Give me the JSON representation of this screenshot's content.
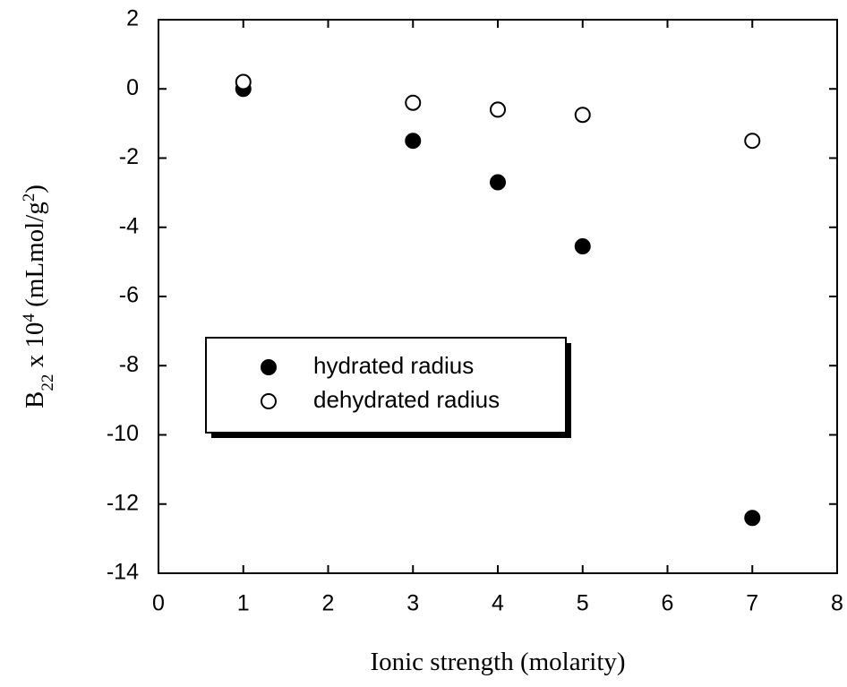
{
  "chart_data": {
    "type": "scatter",
    "xlabel": "Ionic strength (molarity)",
    "ylabel": [
      "B",
      "22",
      " x 10",
      "4",
      " (mLmol/g",
      "2",
      ")"
    ],
    "xlim": [
      0,
      8
    ],
    "xticks": [
      0,
      1,
      2,
      3,
      4,
      5,
      6,
      7,
      8
    ],
    "ylim": [
      -14,
      2
    ],
    "yticks": [
      -14,
      -12,
      -10,
      -8,
      -6,
      -4,
      -2,
      0,
      2
    ],
    "legend": "center-left",
    "series": [
      {
        "name": "hydrated radius",
        "color": "#000000",
        "filled": true,
        "x": [
          1,
          3,
          4,
          5,
          7
        ],
        "values": [
          0,
          -1.5,
          -2.7,
          -4.55,
          -12.4
        ]
      },
      {
        "name": "dehydrated radius",
        "color": "#000000",
        "filled": false,
        "x": [
          1,
          3,
          4,
          5,
          7
        ],
        "values": [
          0.2,
          -0.4,
          -0.6,
          -0.75,
          -1.5
        ]
      }
    ]
  }
}
